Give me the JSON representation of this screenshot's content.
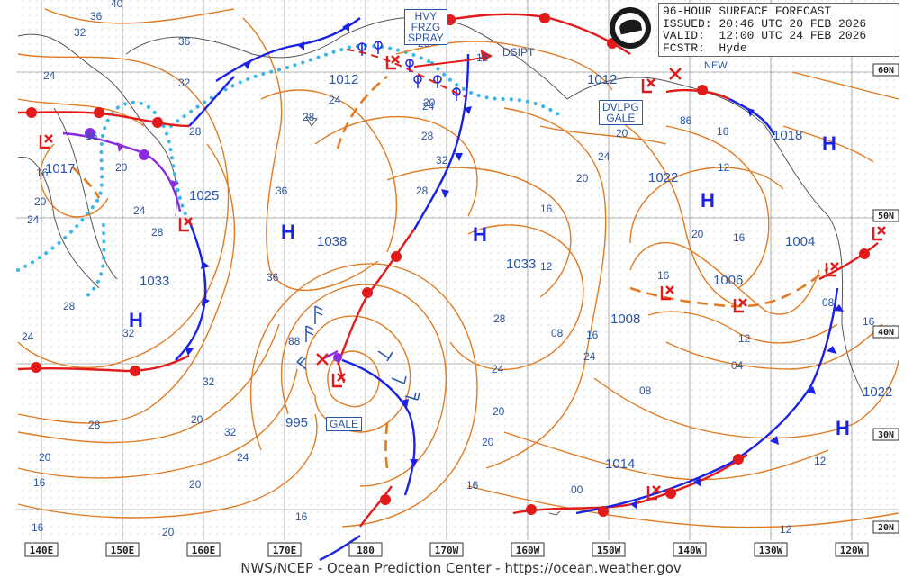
{
  "header": {
    "line1": "96-HOUR SURFACE FORECAST",
    "line2": "ISSUED: 20:46 UTC 20 FEB 2026",
    "line3": "VALID:  12:00 UTC 24 FEB 2026",
    "line4": "FCSTR:  Hyde"
  },
  "footer": "NWS/NCEP - Ocean Prediction Center - https://ocean.weather.gov",
  "longitudes": [
    "140E",
    "150E",
    "160E",
    "170E",
    "180",
    "170W",
    "160W",
    "150W",
    "140W",
    "130W",
    "120W"
  ],
  "latitudes": [
    "60N",
    "50N",
    "40N",
    "30N",
    "20N"
  ],
  "boxes": {
    "spray": [
      "HVY",
      "FRZG",
      "SPRAY"
    ],
    "gale1": [
      "DVLPG",
      "GALE"
    ],
    "gale2": [
      "GALE"
    ]
  },
  "annotations": {
    "dsipt": "DSIPT",
    "new": "NEW"
  },
  "highs": [
    {
      "id": "h1033w",
      "label": "1033"
    },
    {
      "id": "h1038",
      "label": "1038"
    },
    {
      "id": "h1033c",
      "label": "1033"
    },
    {
      "id": "h1022n",
      "label": "1022"
    },
    {
      "id": "h1018",
      "label": "1018"
    },
    {
      "id": "h1022s",
      "label": "1022"
    }
  ],
  "lows": [
    {
      "id": "l1017",
      "label": "1017"
    },
    {
      "id": "l1025",
      "label": "1025"
    },
    {
      "id": "l1012a",
      "label": "1012"
    },
    {
      "id": "l1012b",
      "label": "1012"
    },
    {
      "id": "l995",
      "label": "995"
    },
    {
      "id": "l1006",
      "label": "1006"
    },
    {
      "id": "l1004",
      "label": "1004"
    },
    {
      "id": "l1014",
      "label": "1014"
    },
    {
      "id": "l1008",
      "label": "1008"
    }
  ],
  "isobar_labels": [
    "40",
    "36",
    "32",
    "36",
    "24",
    "32",
    "28",
    "24",
    "16",
    "20",
    "20",
    "16",
    "24",
    "28",
    "24",
    "28",
    "32",
    "32",
    "36",
    "36",
    "28",
    "24",
    "20",
    "16",
    "28",
    "32",
    "24",
    "20",
    "20",
    "16",
    "20",
    "16",
    "24",
    "28",
    "32",
    "28",
    "24",
    "20",
    "20",
    "16",
    "24",
    "20",
    "12",
    "16",
    "20",
    "16",
    "12",
    "08",
    "04",
    "00",
    "08",
    "12",
    "12",
    "16",
    "16",
    "12",
    "08",
    "16",
    "20",
    "16",
    "20",
    "86",
    "88",
    "20",
    "16",
    "24",
    "28"
  ],
  "colors": {
    "isobar": "#e07b22",
    "isobar_label": "#2a55a8",
    "cold_front": "#1a22e6",
    "warm_front": "#e21a1a",
    "occluded_front": "#8a2be2",
    "ice_edge": "#3ab7e8",
    "grid": "#9a9a9a",
    "coast": "#555555",
    "pressure_center": "#1a22e6",
    "low_center": "#e21a1a"
  }
}
